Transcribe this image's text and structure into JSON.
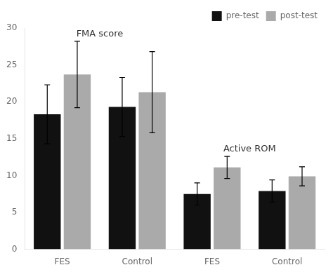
{
  "chart_data": {
    "type": "bar",
    "categories": [
      "FES",
      "Control",
      "FES",
      "Control"
    ],
    "series": [
      {
        "name": "pre-test",
        "color": "#111111",
        "values": [
          18.3,
          19.3,
          7.5,
          7.9
        ],
        "errors": [
          4.0,
          4.0,
          1.5,
          1.5
        ]
      },
      {
        "name": "post-test",
        "color": "#aaaaaa",
        "values": [
          23.7,
          21.3,
          11.1,
          9.9
        ],
        "errors": [
          4.5,
          5.5,
          1.5,
          1.3
        ]
      }
    ],
    "annotations": [
      "FMA score",
      "Active ROM"
    ],
    "ylim": [
      0,
      30
    ],
    "yticks": [
      0,
      5,
      10,
      15,
      20,
      25,
      30
    ],
    "grid": false,
    "legend": "upper right"
  }
}
